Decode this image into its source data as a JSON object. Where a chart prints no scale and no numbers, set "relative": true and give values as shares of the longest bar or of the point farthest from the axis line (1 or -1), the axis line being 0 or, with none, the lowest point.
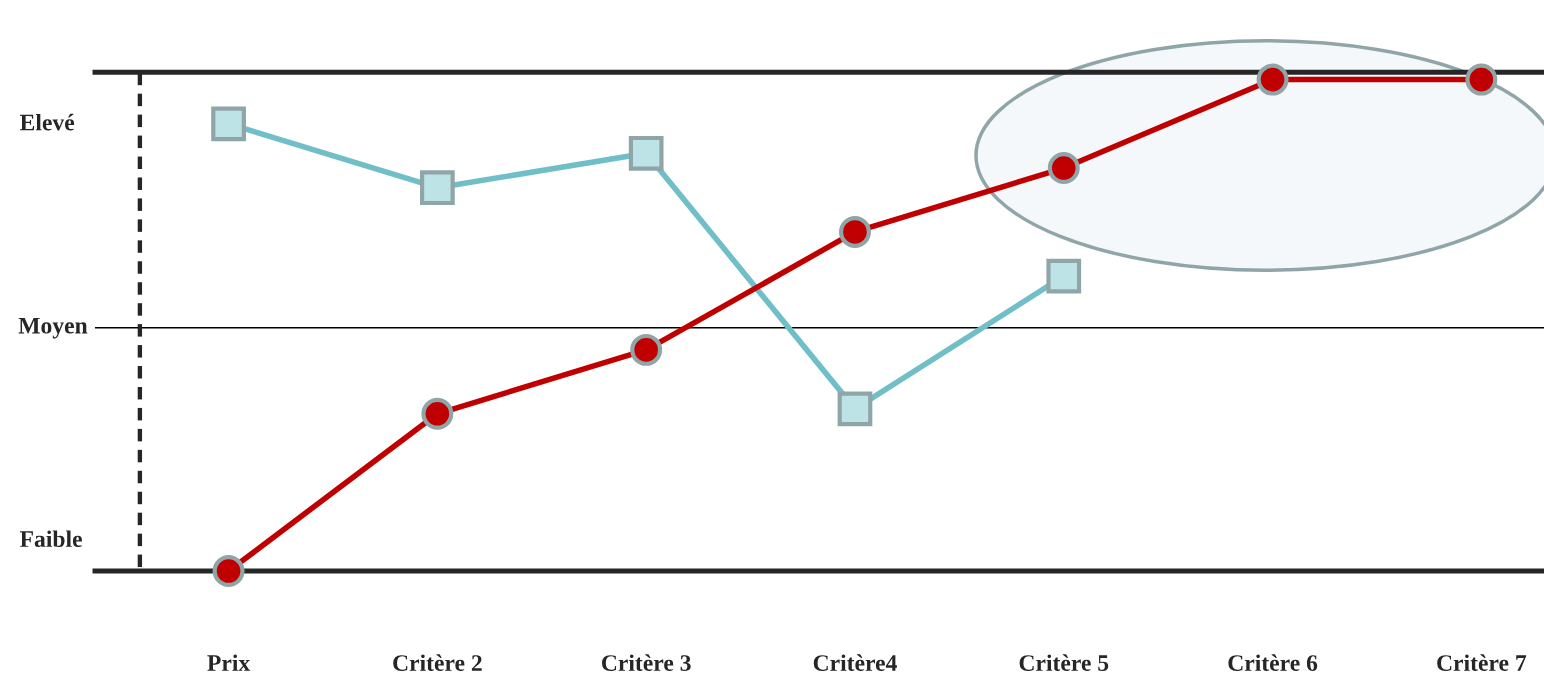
{
  "chart_data": {
    "type": "line",
    "relative": true,
    "categories": [
      "Prix",
      "Critère 2",
      "Critère 3",
      "Critère4",
      "Critère 5",
      "Critère 6",
      "Critère 7"
    ],
    "series": [
      {
        "color": "#70bfc8",
        "marker": "square",
        "values": [
          0.91,
          0.78,
          0.85,
          0.33,
          0.6,
          null,
          null
        ]
      },
      {
        "color": "#c00000",
        "marker": "circle",
        "values": [
          0,
          0.32,
          0.45,
          0.69,
          0.82,
          1,
          1
        ]
      }
    ],
    "ref_lines": [
      {
        "axis": "y",
        "value": 0.495,
        "label": "Moyen",
        "color": "#000000"
      }
    ],
    "annotations": [
      "Elevé",
      "Faible"
    ],
    "grid": false,
    "legend": false
  }
}
